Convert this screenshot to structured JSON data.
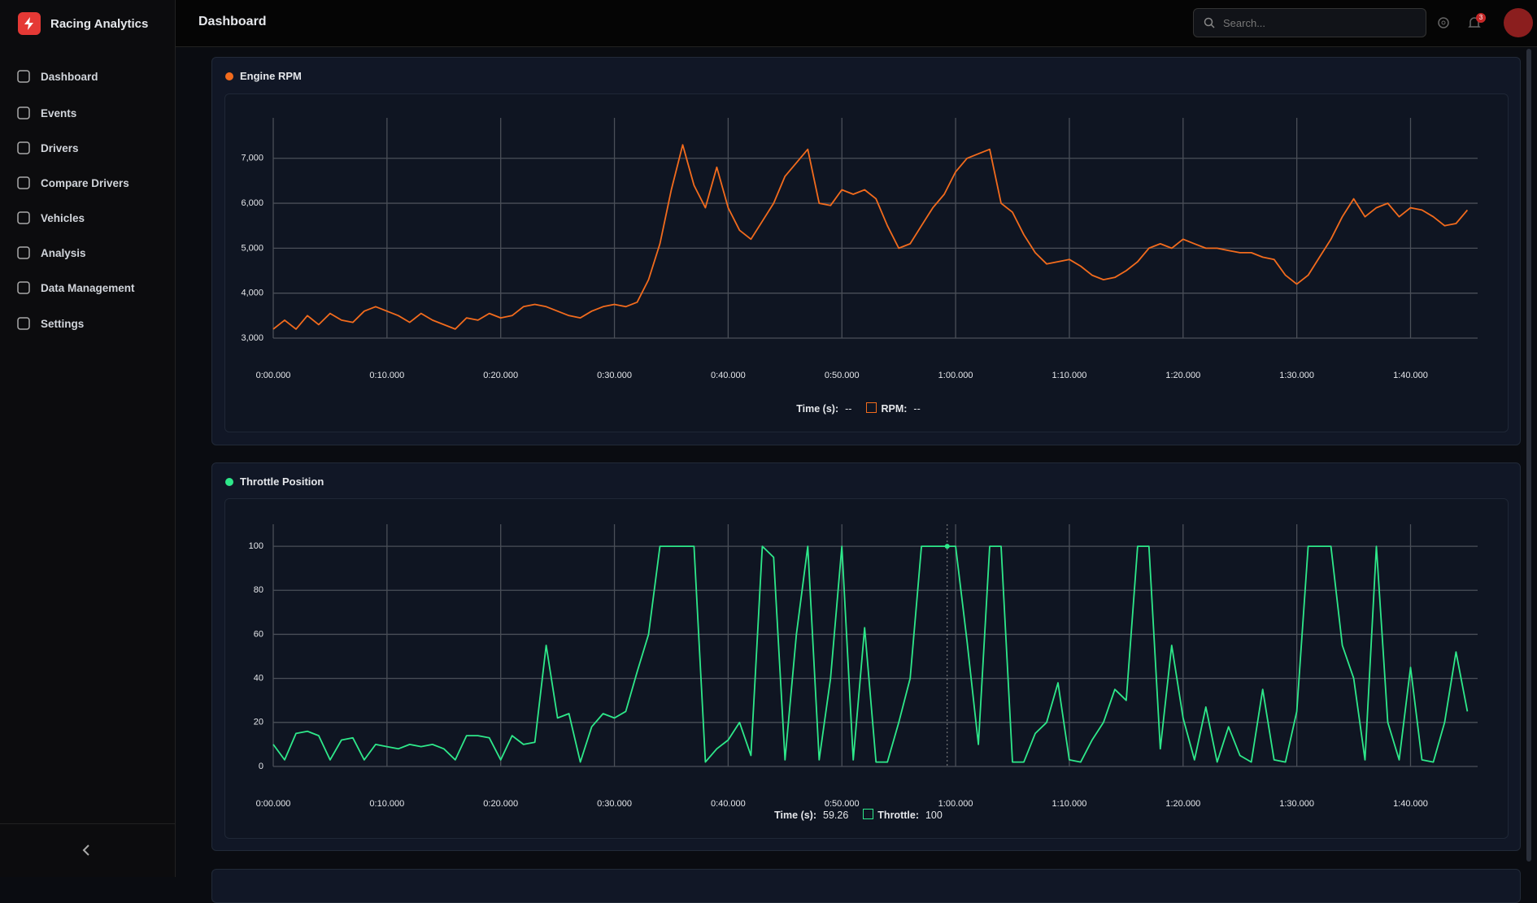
{
  "app": {
    "brand": "Racing Analytics",
    "nav": [
      "Dashboard",
      "Events",
      "Drivers",
      "Compare Drivers",
      "Vehicles",
      "Analysis",
      "Data Management",
      "Settings"
    ]
  },
  "header": {
    "title": "Dashboard",
    "search_placeholder": "Search...",
    "notifications": "3"
  },
  "chart_data": [
    {
      "type": "line",
      "title": "Engine RPM",
      "x": [
        0,
        1,
        2,
        3,
        4,
        5,
        6,
        7,
        8,
        9,
        10,
        11,
        12,
        13,
        14,
        15,
        16,
        17,
        18,
        19,
        20,
        21,
        22,
        23,
        24,
        25,
        26,
        27,
        28,
        29,
        30,
        31,
        32,
        33,
        34,
        35,
        36,
        37,
        38,
        39,
        40,
        41,
        42,
        43,
        44,
        45,
        46,
        47,
        48,
        49,
        50,
        51,
        52,
        53,
        54,
        55,
        56,
        57,
        58,
        59,
        60,
        61,
        62,
        63,
        64,
        65,
        66,
        67,
        68,
        69,
        70,
        71,
        72,
        73,
        74,
        75,
        76,
        77,
        78,
        79,
        80,
        81,
        82,
        83,
        84,
        85,
        86,
        87,
        88,
        89,
        90,
        91,
        92,
        93,
        94,
        95,
        96,
        97,
        98,
        99,
        100,
        101,
        102,
        103,
        104,
        105
      ],
      "series": [
        {
          "name": "RPM:",
          "color": "#f26b1d",
          "values": [
            3200,
            3400,
            3200,
            3500,
            3300,
            3550,
            3400,
            3350,
            3600,
            3700,
            3600,
            3500,
            3350,
            3550,
            3400,
            3300,
            3200,
            3450,
            3400,
            3550,
            3450,
            3500,
            3700,
            3750,
            3700,
            3600,
            3500,
            3450,
            3600,
            3700,
            3750,
            3700,
            3800,
            4300,
            5100,
            6300,
            7300,
            6400,
            5900,
            6800,
            5900,
            5400,
            5200,
            5600,
            6000,
            6600,
            6900,
            7200,
            6000,
            5950,
            6300,
            6200,
            6300,
            6100,
            5500,
            5000,
            5100,
            5500,
            5900,
            6200,
            6700,
            7000,
            7100,
            7200,
            6000,
            5800,
            5300,
            4900,
            4650,
            4700,
            4750,
            4600,
            4400,
            4300,
            4350,
            4500,
            4700,
            5000,
            5100,
            5000,
            5200,
            5100,
            5000,
            5000,
            4950,
            4900,
            4900,
            4800,
            4750,
            4400,
            4200,
            4400,
            4800,
            5200,
            5700,
            6100,
            5700,
            5900,
            6000,
            5700,
            5900,
            5850,
            5700,
            5500,
            5550,
            5850
          ]
        }
      ],
      "xlim": [
        0,
        105.9
      ],
      "ylim": [
        3000,
        7900
      ],
      "xticks": [
        {
          "value": 0,
          "label": "0:00.000"
        },
        {
          "value": 10,
          "label": "0:10.000"
        },
        {
          "value": 20,
          "label": "0:20.000"
        },
        {
          "value": 30,
          "label": "0:30.000"
        },
        {
          "value": 40,
          "label": "0:40.000"
        },
        {
          "value": 50,
          "label": "0:50.000"
        },
        {
          "value": 60,
          "label": "1:00.000"
        },
        {
          "value": 70,
          "label": "1:10.000"
        },
        {
          "value": 80,
          "label": "1:20.000"
        },
        {
          "value": 90,
          "label": "1:30.000"
        },
        {
          "value": 100,
          "label": "1:40.000"
        }
      ],
      "yticks": [
        {
          "value": 3000,
          "label": "3,000"
        },
        {
          "value": 4000,
          "label": "4,000"
        },
        {
          "value": 5000,
          "label": "5,000"
        },
        {
          "value": 6000,
          "label": "6,000"
        },
        {
          "value": 7000,
          "label": "7,000"
        }
      ],
      "grid": true,
      "readout": {
        "label": "Time (s):",
        "x": "--",
        "y": "--"
      }
    },
    {
      "type": "line",
      "title": "Throttle Position",
      "x": [
        0,
        1,
        2,
        3,
        4,
        5,
        6,
        7,
        8,
        9,
        10,
        11,
        12,
        13,
        14,
        15,
        16,
        17,
        18,
        19,
        20,
        21,
        22,
        23,
        24,
        25,
        26,
        27,
        28,
        29,
        30,
        31,
        32,
        33,
        34,
        35,
        36,
        37,
        38,
        39,
        40,
        41,
        42,
        43,
        44,
        45,
        46,
        47,
        48,
        49,
        50,
        51,
        52,
        53,
        54,
        55,
        56,
        57,
        58,
        59,
        60,
        61,
        62,
        63,
        64,
        65,
        66,
        67,
        68,
        69,
        70,
        71,
        72,
        73,
        74,
        75,
        76,
        77,
        78,
        79,
        80,
        81,
        82,
        83,
        84,
        85,
        86,
        87,
        88,
        89,
        90,
        91,
        92,
        93,
        94,
        95,
        96,
        97,
        98,
        99,
        100,
        101,
        102,
        103,
        104,
        105
      ],
      "series": [
        {
          "name": "Throttle:",
          "color": "#2ee88a",
          "values": [
            10,
            3,
            15,
            16,
            14,
            3,
            12,
            13,
            3,
            10,
            9,
            8,
            10,
            9,
            10,
            8,
            3,
            14,
            14,
            13,
            3,
            14,
            10,
            11,
            55,
            22,
            24,
            2,
            18,
            24,
            22,
            25,
            43,
            60,
            100,
            100,
            100,
            100,
            2,
            8,
            12,
            20,
            5,
            100,
            95,
            3,
            60,
            100,
            3,
            40,
            100,
            3,
            63,
            2,
            2,
            20,
            40,
            100,
            100,
            100,
            100,
            57,
            10,
            100,
            100,
            2,
            2,
            15,
            20,
            38,
            3,
            2,
            12,
            20,
            35,
            30,
            100,
            100,
            8,
            55,
            22,
            3,
            27,
            2,
            18,
            5,
            2,
            35,
            3,
            2,
            25,
            100,
            100,
            100,
            55,
            40,
            3,
            100,
            20,
            3,
            45,
            3,
            2,
            20,
            52,
            25
          ]
        }
      ],
      "xlim": [
        0,
        105.9
      ],
      "ylim": [
        0,
        110
      ],
      "xticks": [
        {
          "value": 0,
          "label": "0:00.000"
        },
        {
          "value": 10,
          "label": "0:10.000"
        },
        {
          "value": 20,
          "label": "0:20.000"
        },
        {
          "value": 30,
          "label": "0:30.000"
        },
        {
          "value": 40,
          "label": "0:40.000"
        },
        {
          "value": 50,
          "label": "0:50.000"
        },
        {
          "value": 60,
          "label": "1:00.000"
        },
        {
          "value": 70,
          "label": "1:10.000"
        },
        {
          "value": 80,
          "label": "1:20.000"
        },
        {
          "value": 90,
          "label": "1:30.000"
        },
        {
          "value": 100,
          "label": "1:40.000"
        }
      ],
      "yticks": [
        0,
        20,
        40,
        60,
        80,
        100
      ],
      "grid": true,
      "readout": {
        "label": "Time (s):",
        "x": 59.26,
        "y": 100
      }
    }
  ]
}
